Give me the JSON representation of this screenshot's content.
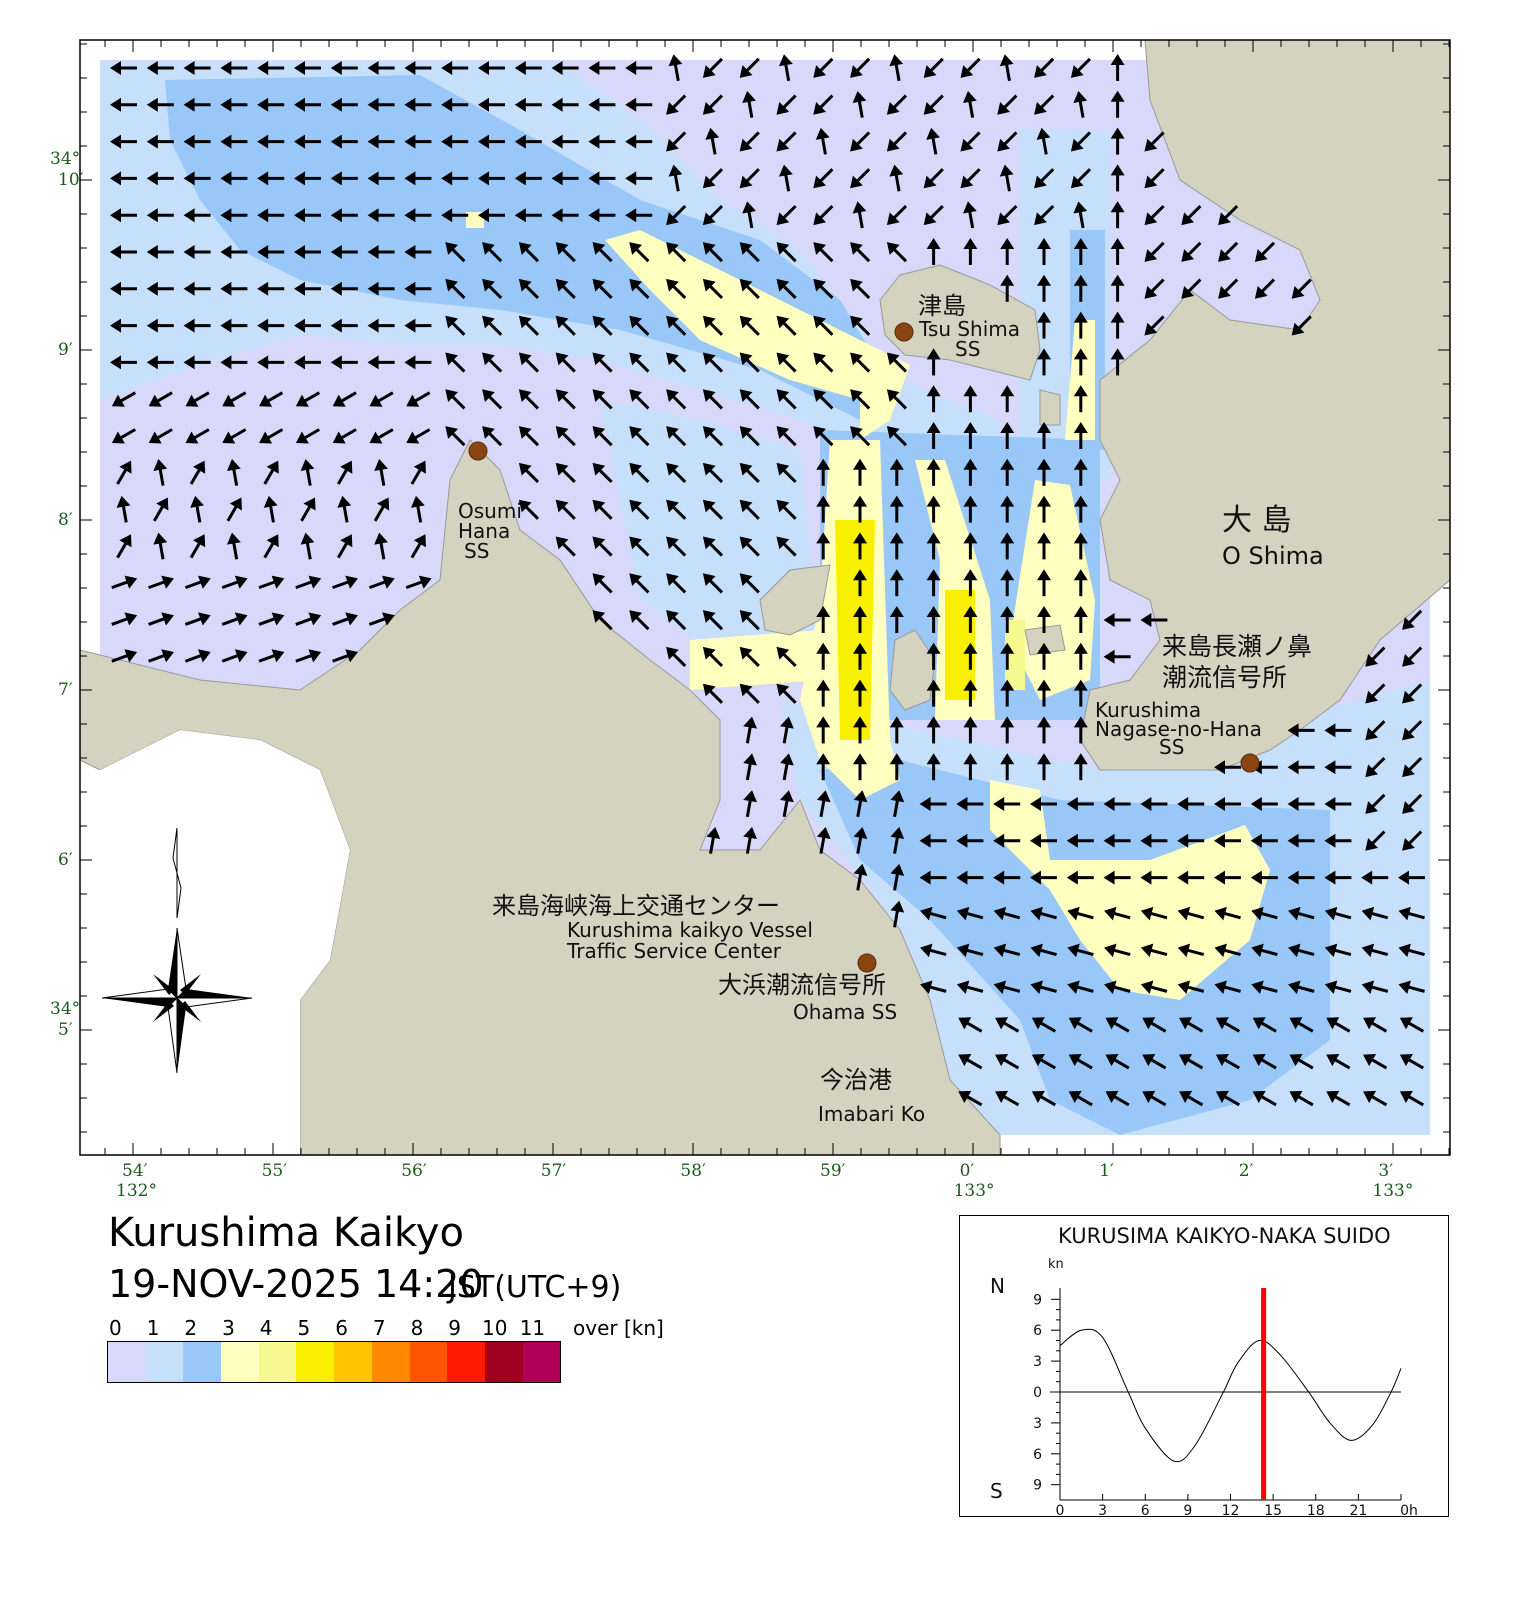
{
  "title": "Kurushima Kaikyo",
  "datetime": "19-NOV-2025 14:20",
  "timezone": "JST(UTC+9)",
  "legend": {
    "labels": [
      "0",
      "1",
      "2",
      "3",
      "4",
      "5",
      "6",
      "7",
      "8",
      "9",
      "10",
      "11"
    ],
    "over_label": "over [kn]",
    "colors": [
      "#d8d8fa",
      "#c6e0fc",
      "#99c8f8",
      "#ffffc0",
      "#f8f890",
      "#f8f000",
      "#ffc400",
      "#ff8800",
      "#ff5500",
      "#ff1a00",
      "#a00020",
      "#b00058"
    ]
  },
  "map": {
    "land_color": "#d3d3c0",
    "lat_ticks": [
      {
        "deg": "34°",
        "min": "10′"
      },
      {
        "min": "9′"
      },
      {
        "min": "8′"
      },
      {
        "min": "7′"
      },
      {
        "min": "6′"
      },
      {
        "deg": "34°",
        "min": "5′"
      }
    ],
    "lon_ticks": [
      {
        "min": "54′",
        "deg": "132°"
      },
      {
        "min": "55′"
      },
      {
        "min": "56′"
      },
      {
        "min": "57′"
      },
      {
        "min": "58′"
      },
      {
        "min": "59′"
      },
      {
        "min": "0′",
        "deg": "133°"
      },
      {
        "min": "1′"
      },
      {
        "min": "2′"
      },
      {
        "min": "3′",
        "deg": "133°"
      }
    ],
    "places": {
      "tsushima": {
        "ja": "津島",
        "en": "Tsu Shima",
        "ss": "SS"
      },
      "osumi": {
        "l1": "Osumi",
        "l2": "Hana",
        "l3": "SS"
      },
      "oshima": {
        "ja": "大 島",
        "en": "O Shima"
      },
      "nagase": {
        "ja1": "来島長瀬ノ鼻",
        "ja2": "潮流信号所",
        "en1": "Kurushima",
        "en2": "Nagase-no-Hana",
        "en3": "SS"
      },
      "vts": {
        "ja": "来島海峡海上交通センター",
        "en1": "Kurushima kaikyo Vessel",
        "en2": "Traffic Service Center"
      },
      "ohama": {
        "ja": "大浜潮流信号所",
        "en": "Ohama SS"
      },
      "imabari": {
        "ja": "今治港",
        "en": "Imabari Ko"
      }
    },
    "station_color": "#8b4513"
  },
  "chart_data": {
    "type": "line",
    "title": "KURUSIMA KAIKYO-NAKA SUIDO",
    "ylabel": "kn",
    "north_label": "N",
    "south_label": "S",
    "y_tick_labels": [
      "9",
      "6",
      "3",
      "0",
      "3",
      "6",
      "9"
    ],
    "x_tick_labels": [
      "0",
      "3",
      "6",
      "9",
      "12",
      "15",
      "18",
      "21",
      "0h"
    ],
    "xlim": [
      0,
      24
    ],
    "ylim": [
      -9,
      9
    ],
    "x": [
      0,
      1.5,
      3,
      4.8,
      6,
      8,
      9.5,
      11.5,
      12.5,
      14,
      15.5,
      17.5,
      19,
      20.5,
      22,
      23.3,
      24
    ],
    "y": [
      4.5,
      6,
      5.3,
      0,
      -3.5,
      -6.7,
      -5.2,
      0,
      2.8,
      5,
      3.6,
      0,
      -3,
      -4.7,
      -3.2,
      0,
      2.3
    ],
    "current_time_hour": 14.33,
    "current_time_color": "#ff0000"
  }
}
